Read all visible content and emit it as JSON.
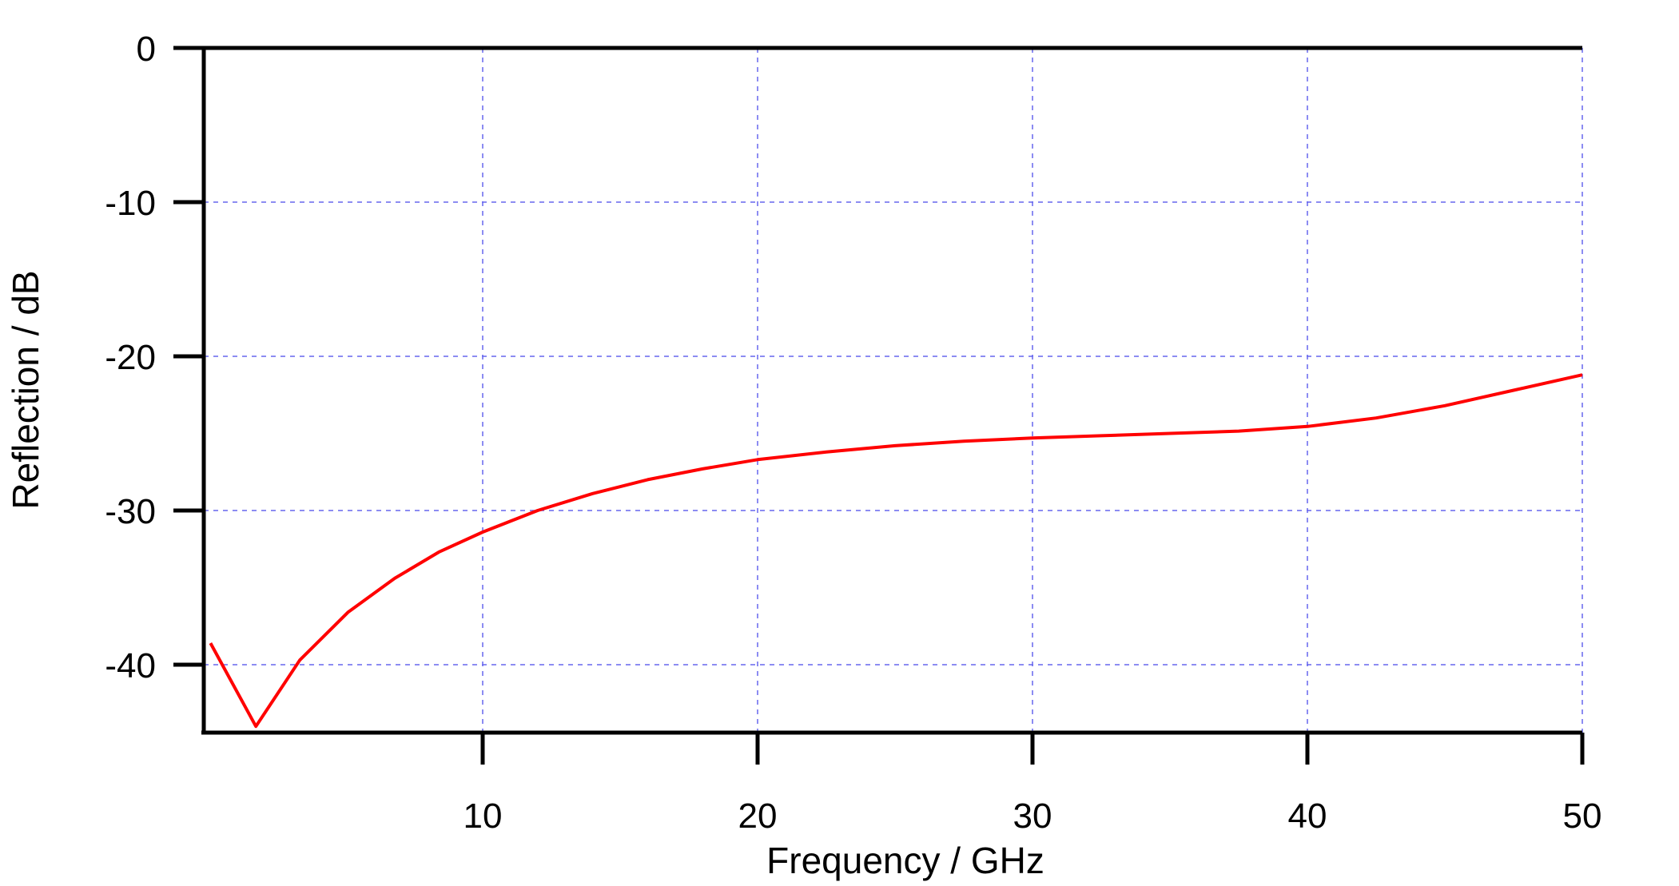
{
  "chart_data": {
    "type": "line",
    "title": "",
    "xlabel": "Frequency / GHz",
    "ylabel": "Reflection / dB",
    "xlim": [
      0,
      50
    ],
    "ylim": [
      -44.4,
      0
    ],
    "xticks": [
      10,
      20,
      30,
      40,
      50
    ],
    "yticks": [
      0,
      -10,
      -20,
      -30,
      -40
    ],
    "xtick_labels": [
      "10",
      "20",
      "30",
      "40",
      "50"
    ],
    "ytick_labels": [
      "0",
      "-10",
      "-20",
      "-30",
      "-40"
    ],
    "grid": true,
    "grid_color": "#6666ee",
    "legend": null,
    "series": [
      {
        "name": "Reflection",
        "color": "#ff0000",
        "x": [
          0.1,
          1.75,
          3.35,
          5.1,
          6.8,
          8.4,
          10,
          12,
          14,
          16,
          18,
          20,
          22.5,
          25,
          27.5,
          30,
          32.5,
          35,
          37.5,
          40,
          42.5,
          45,
          47.5,
          50
        ],
        "y": [
          -38.6,
          -44.0,
          -39.7,
          -36.6,
          -34.4,
          -32.7,
          -31.4,
          -30.0,
          -28.9,
          -28.0,
          -27.3,
          -26.7,
          -26.2,
          -25.8,
          -25.5,
          -25.3,
          -25.15,
          -25.0,
          -24.85,
          -24.55,
          -24.0,
          -23.2,
          -22.2,
          -21.2
        ]
      }
    ]
  }
}
